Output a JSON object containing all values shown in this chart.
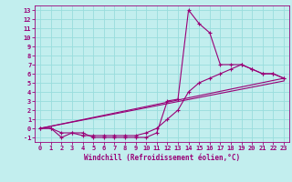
{
  "title": "",
  "xlabel": "Windchill (Refroidissement éolien,°C)",
  "background_color": "#c2eeee",
  "grid_color": "#99dddd",
  "line_color": "#990077",
  "xlim": [
    -0.5,
    23.5
  ],
  "ylim": [
    -1.5,
    13.5
  ],
  "xticks": [
    0,
    1,
    2,
    3,
    4,
    5,
    6,
    7,
    8,
    9,
    10,
    11,
    12,
    13,
    14,
    15,
    16,
    17,
    18,
    19,
    20,
    21,
    22,
    23
  ],
  "yticks": [
    -1,
    0,
    1,
    2,
    3,
    4,
    5,
    6,
    7,
    8,
    9,
    10,
    11,
    12,
    13
  ],
  "series0_x": [
    0,
    1,
    2,
    3,
    4,
    5,
    6,
    7,
    8,
    9,
    10,
    11,
    12,
    13,
    14,
    15,
    16,
    17,
    18,
    19,
    20,
    21,
    22,
    23
  ],
  "series0_y": [
    0,
    0,
    -1,
    -0.5,
    -0.5,
    -1,
    -1,
    -1,
    -1,
    -1,
    -1,
    -0.5,
    3,
    3.2,
    13,
    11.5,
    10.5,
    7,
    7,
    7,
    6.5,
    6,
    6,
    5.5
  ],
  "series1_x": [
    0,
    1,
    2,
    3,
    4,
    5,
    6,
    7,
    8,
    9,
    10,
    11,
    12,
    13,
    14,
    15,
    16,
    17,
    18,
    19,
    20,
    21,
    22,
    23
  ],
  "series1_y": [
    0,
    0,
    -0.5,
    -0.5,
    -0.8,
    -0.8,
    -0.8,
    -0.8,
    -0.8,
    -0.8,
    -0.5,
    0,
    1,
    2,
    4,
    5,
    5.5,
    6,
    6.5,
    7,
    6.5,
    6,
    6,
    5.5
  ],
  "series2_x": [
    0,
    23
  ],
  "series2_y": [
    0,
    5.5
  ],
  "series3_x": [
    0,
    23
  ],
  "series3_y": [
    0,
    5.2
  ],
  "label_fontsize": 5.5,
  "tick_fontsize": 5.0
}
